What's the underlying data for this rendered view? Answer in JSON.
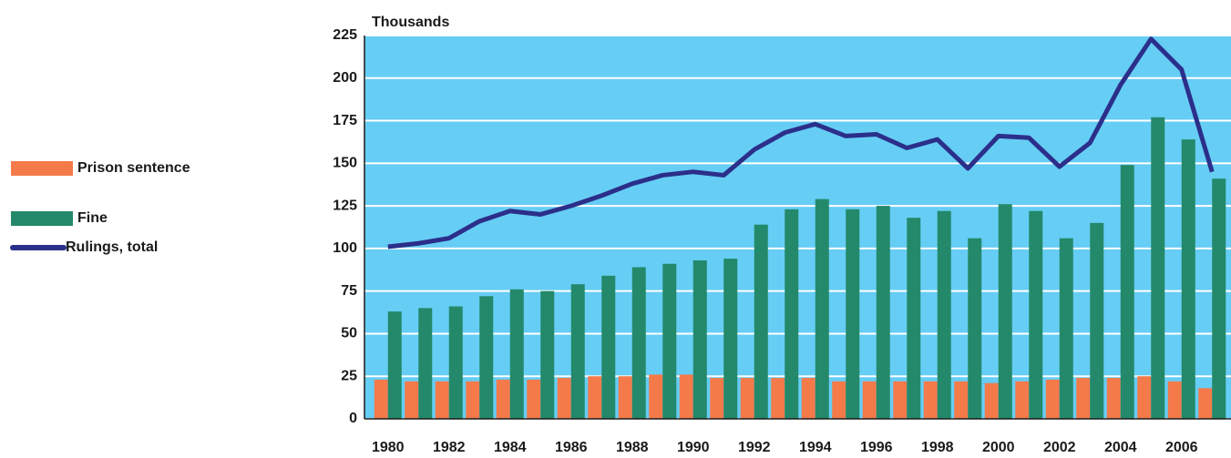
{
  "chart_data": {
    "type": "bar",
    "ylabel": "Thousands",
    "categories": [
      "1980",
      null,
      "1982",
      null,
      "1984",
      null,
      "1986",
      null,
      "1988",
      null,
      "1990",
      null,
      "1992",
      null,
      "1994",
      null,
      "1996",
      null,
      "1998",
      null,
      "2000",
      null,
      "2002",
      null,
      "2004",
      null,
      "2006",
      null
    ],
    "series": [
      {
        "name": "Prison sentence",
        "type": "bar",
        "color": "#f47a4a",
        "values": [
          23,
          22,
          22,
          22,
          23,
          23,
          24,
          25,
          25,
          26,
          26,
          24,
          24,
          24,
          24,
          22,
          22,
          22,
          22,
          22,
          21,
          22,
          23,
          24,
          24,
          25,
          22,
          18
        ]
      },
      {
        "name": "Fine",
        "type": "bar",
        "color": "#23896a",
        "values": [
          63,
          65,
          66,
          72,
          76,
          75,
          79,
          84,
          89,
          91,
          93,
          94,
          114,
          123,
          129,
          123,
          125,
          118,
          122,
          106,
          126,
          122,
          106,
          115,
          149,
          177,
          164,
          141
        ]
      },
      {
        "name": "Rulings, total",
        "type": "line",
        "color": "#2b2f8a",
        "values": [
          101,
          103,
          106,
          116,
          122,
          120,
          125,
          131,
          138,
          143,
          145,
          143,
          158,
          168,
          173,
          166,
          167,
          159,
          164,
          147,
          166,
          165,
          148,
          162,
          196,
          223,
          205,
          145
        ]
      }
    ],
    "ylim": [
      0,
      225
    ],
    "yticks": [
      0,
      25,
      50,
      75,
      100,
      125,
      150,
      175,
      200,
      225
    ],
    "grid": true,
    "background": "#66cdf5",
    "legend": "left"
  }
}
